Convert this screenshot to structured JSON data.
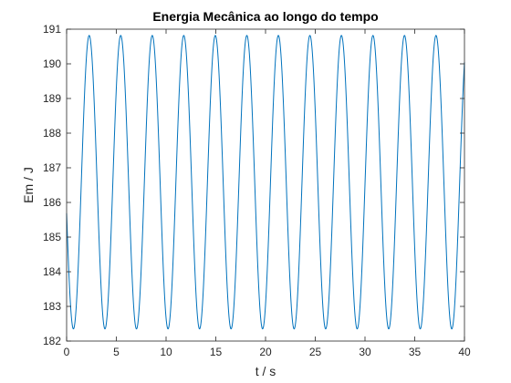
{
  "chart_data": {
    "type": "line",
    "title": "Energia Mecânica ao longo do tempo",
    "xlabel": "t / s",
    "ylabel": "Em / J",
    "xlim": [
      0,
      40
    ],
    "ylim": [
      182,
      191
    ],
    "xticks": [
      0,
      5,
      10,
      15,
      20,
      25,
      30,
      35,
      40
    ],
    "yticks": [
      182,
      183,
      184,
      185,
      186,
      187,
      188,
      189,
      190,
      191
    ],
    "grid": false,
    "series": [
      {
        "color": "#0072BD",
        "waveform": "sinusoid",
        "min": 182.35,
        "max": 190.82,
        "period_s": 3.17,
        "first_max_t": 2.27,
        "x": [
          0,
          0.69,
          2.27,
          3.86,
          5.44,
          7.03,
          8.61,
          10.2,
          11.78,
          13.37,
          14.95,
          16.54,
          18.12,
          19.71,
          21.29,
          22.88,
          24.46,
          26.05,
          27.63,
          29.22,
          30.8,
          32.39,
          33.97,
          35.56,
          37.14,
          38.73,
          40
        ],
        "y": [
          183.0,
          182.35,
          190.82,
          182.35,
          190.82,
          182.35,
          190.82,
          182.35,
          190.82,
          182.35,
          190.82,
          182.35,
          190.82,
          182.35,
          190.82,
          182.35,
          190.82,
          182.35,
          190.82,
          182.35,
          190.82,
          182.35,
          190.82,
          182.35,
          190.82,
          182.35,
          190.15
        ]
      }
    ]
  }
}
